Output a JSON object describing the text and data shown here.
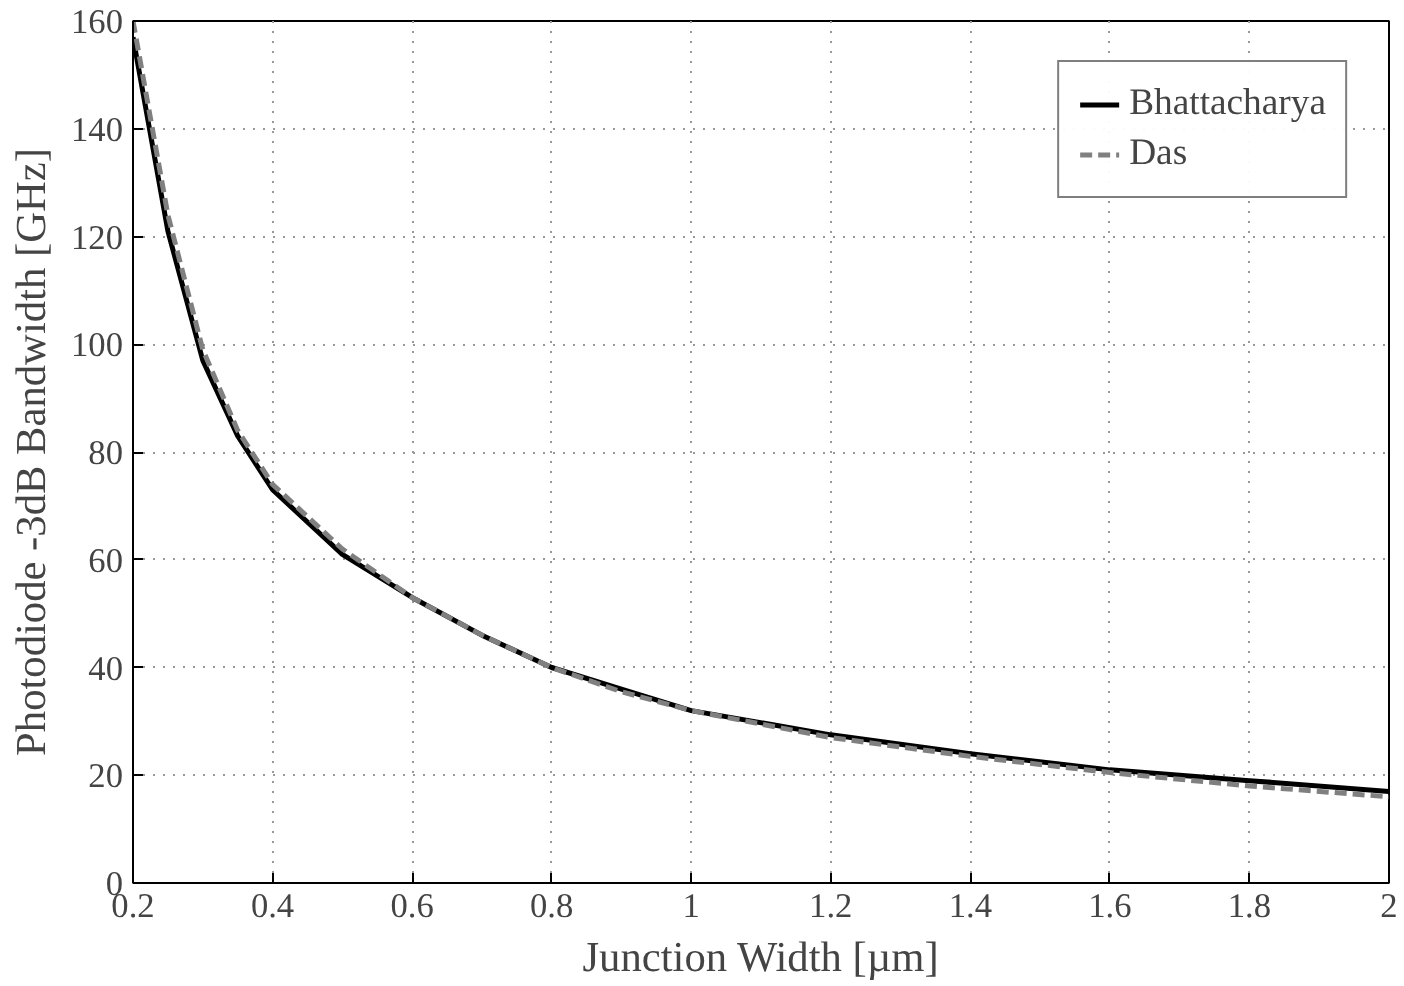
{
  "chart_data": {
    "type": "line",
    "xlabel": "Junction Width [µm]",
    "ylabel": "Photodiode -3dB Bandwidth [GHz]",
    "x": [
      0.2,
      0.25,
      0.3,
      0.35,
      0.4,
      0.5,
      0.6,
      0.7,
      0.8,
      0.9,
      1.0,
      1.2,
      1.4,
      1.6,
      1.8,
      2.0
    ],
    "series": [
      {
        "name": "Bhattacharya",
        "color": "#000000",
        "line_style": "solid",
        "values": [
          157,
          121,
          97,
          83,
          73,
          61,
          53,
          46,
          40,
          36,
          32,
          27.5,
          24,
          21,
          19,
          17
        ]
      },
      {
        "name": "Das",
        "color": "#808080",
        "line_style": "dashed",
        "values": [
          160,
          124,
          99,
          84,
          74,
          62,
          53,
          46,
          40,
          35.5,
          32,
          27,
          23.5,
          20.5,
          18,
          16
        ]
      }
    ],
    "xlim": [
      0.2,
      2
    ],
    "ylim": [
      0,
      160
    ],
    "xticks": [
      0.2,
      0.4,
      0.6,
      0.8,
      1,
      1.2,
      1.4,
      1.6,
      1.8,
      2
    ],
    "yticks": [
      0,
      20,
      40,
      60,
      80,
      100,
      120,
      140,
      160
    ],
    "grid": true,
    "legend": "top right"
  }
}
